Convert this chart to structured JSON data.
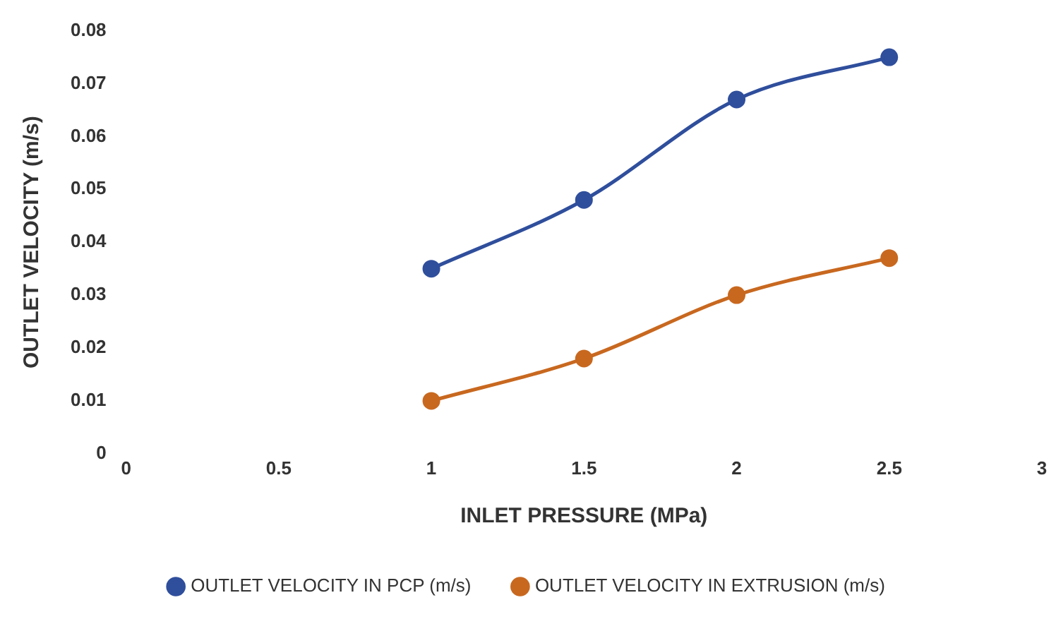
{
  "chart_data": {
    "type": "line",
    "xlabel": "INLET PRESSURE (MPa)",
    "ylabel": "OUTLET VELOCITY (m/s)",
    "x": [
      1,
      1.5,
      2,
      2.5
    ],
    "series": [
      {
        "name": "OUTLET VELOCITY IN PCP (m/s)",
        "color": "#2f4e9c",
        "values": [
          0.035,
          0.048,
          0.067,
          0.075
        ]
      },
      {
        "name": "OUTLET VELOCITY IN EXTRUSION (m/s)",
        "color": "#c8681f",
        "values": [
          0.01,
          0.018,
          0.03,
          0.037
        ]
      }
    ],
    "xlim": [
      0,
      3
    ],
    "xticks": [
      0,
      0.5,
      1,
      1.5,
      2,
      2.5,
      3
    ],
    "ylim": [
      0,
      0.08
    ],
    "yticks": [
      0,
      0.01,
      0.02,
      0.03,
      0.04,
      0.05,
      0.06,
      0.07,
      0.08
    ],
    "grid": false,
    "legend": "bottom",
    "marker": "circle",
    "line_style": "solid"
  }
}
